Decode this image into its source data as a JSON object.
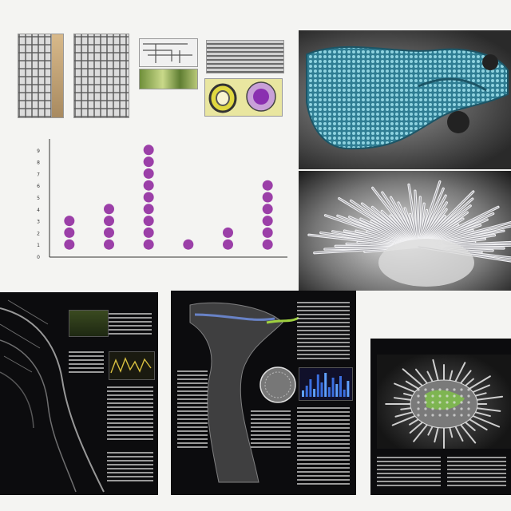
{
  "top_left_caption": "",
  "top_right_caption": "",
  "chart_data": {
    "type": "scatter",
    "title": "",
    "ylabel": "",
    "xlabel": "",
    "categories": [
      "",
      "",
      "",
      "",
      "",
      ""
    ],
    "values": [
      3,
      4,
      9,
      1,
      2,
      6
    ],
    "ylim": [
      0,
      10
    ],
    "y_ticks": [
      "0",
      "1",
      "2",
      "3",
      "4",
      "5",
      "6",
      "7",
      "8",
      "9"
    ],
    "grid": false,
    "marker_color": "#9b3fa8"
  },
  "colors": {
    "page_bg": "#f4f4f2",
    "dark_page": "#0c0c0e",
    "lattice_teal": "#4aa6b8",
    "spike_white": "#e8e8ea",
    "specimen_green": "#7fbf4a"
  }
}
